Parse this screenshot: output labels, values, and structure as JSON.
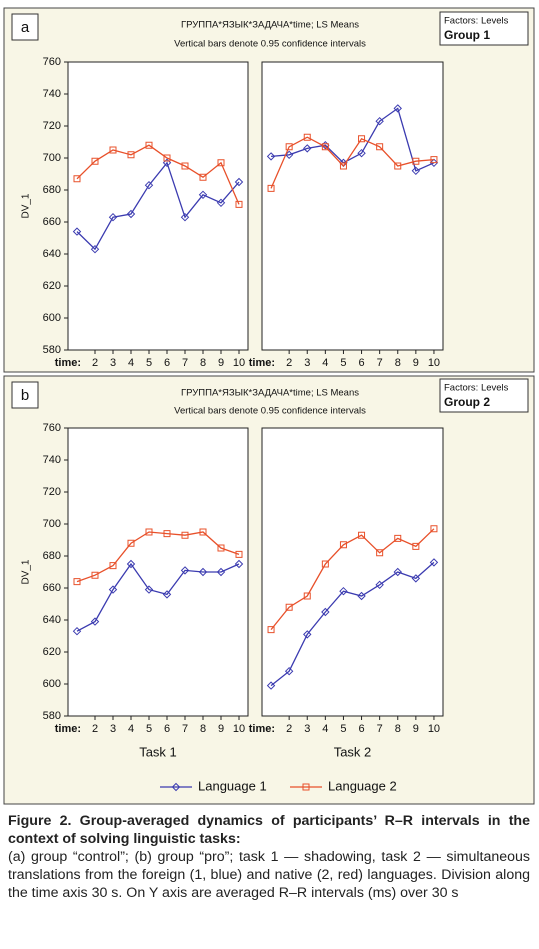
{
  "panels": [
    {
      "label": "a",
      "title": "ГРУППА*ЯЗЫК*ЗАДАЧА*time; LS Means",
      "subtitle": "Vertical bars denote 0.95 confidence intervals",
      "factors_title": "Factors: Levels",
      "factors_value": "Group 1"
    },
    {
      "label": "b",
      "title": "ГРУППА*ЯЗЫК*ЗАДАЧА*time; LS Means",
      "subtitle": "Vertical bars denote 0.95 confidence intervals",
      "factors_title": "Factors: Levels",
      "factors_value": "Group 2"
    }
  ],
  "chart_data": [
    {
      "type": "line",
      "ylabel": "DV_1",
      "xlabel": "time:",
      "x": [
        1,
        2,
        3,
        4,
        5,
        6,
        7,
        8,
        9,
        10
      ],
      "xlim": [
        0.5,
        10.5
      ],
      "xticks": [
        2,
        3,
        4,
        5,
        6,
        7,
        8,
        9,
        10
      ],
      "ylim": [
        580,
        760
      ],
      "yticks": [
        580,
        600,
        620,
        640,
        660,
        680,
        700,
        720,
        740,
        760
      ],
      "series": [
        {
          "name": "Language 1",
          "color": "#3b3bb0",
          "marker": "diamond",
          "values": [
            654,
            643,
            663,
            665,
            683,
            697,
            663,
            677,
            672,
            685
          ]
        },
        {
          "name": "Language 2",
          "color": "#e8502a",
          "marker": "square",
          "values": [
            687,
            698,
            705,
            702,
            708,
            700,
            695,
            688,
            697,
            671
          ]
        }
      ]
    },
    {
      "type": "line",
      "xlabel": "time:",
      "x": [
        1,
        2,
        3,
        4,
        5,
        6,
        7,
        8,
        9,
        10
      ],
      "xlim": [
        0.5,
        10.5
      ],
      "xticks": [
        2,
        3,
        4,
        5,
        6,
        7,
        8,
        9,
        10
      ],
      "ylim": [
        580,
        760
      ],
      "series": [
        {
          "name": "Language 1",
          "color": "#3b3bb0",
          "marker": "diamond",
          "values": [
            701,
            702,
            706,
            708,
            697,
            703,
            723,
            731,
            692,
            697
          ]
        },
        {
          "name": "Language 2",
          "color": "#e8502a",
          "marker": "square",
          "values": [
            681,
            707,
            713,
            707,
            695,
            712,
            707,
            695,
            698,
            699
          ]
        }
      ]
    },
    {
      "type": "line",
      "ylabel": "DV_1",
      "xlabel": "time:",
      "task": "Task 1",
      "x": [
        1,
        2,
        3,
        4,
        5,
        6,
        7,
        8,
        9,
        10
      ],
      "xlim": [
        0.5,
        10.5
      ],
      "xticks": [
        2,
        3,
        4,
        5,
        6,
        7,
        8,
        9,
        10
      ],
      "ylim": [
        580,
        760
      ],
      "yticks": [
        580,
        600,
        620,
        640,
        660,
        680,
        700,
        720,
        740,
        760
      ],
      "series": [
        {
          "name": "Language 1",
          "color": "#3b3bb0",
          "marker": "diamond",
          "values": [
            633,
            639,
            659,
            675,
            659,
            656,
            671,
            670,
            670,
            675
          ]
        },
        {
          "name": "Language 2",
          "color": "#e8502a",
          "marker": "square",
          "values": [
            664,
            668,
            674,
            688,
            695,
            694,
            693,
            695,
            685,
            681
          ]
        }
      ]
    },
    {
      "type": "line",
      "xlabel": "time:",
      "task": "Task 2",
      "x": [
        1,
        2,
        3,
        4,
        5,
        6,
        7,
        8,
        9,
        10
      ],
      "xlim": [
        0.5,
        10.5
      ],
      "xticks": [
        2,
        3,
        4,
        5,
        6,
        7,
        8,
        9,
        10
      ],
      "ylim": [
        580,
        760
      ],
      "series": [
        {
          "name": "Language 1",
          "color": "#3b3bb0",
          "marker": "diamond",
          "values": [
            599,
            608,
            631,
            645,
            658,
            655,
            662,
            670,
            666,
            676
          ]
        },
        {
          "name": "Language 2",
          "color": "#e8502a",
          "marker": "square",
          "values": [
            634,
            648,
            655,
            675,
            687,
            693,
            682,
            691,
            686,
            697
          ]
        }
      ]
    }
  ],
  "caption": {
    "title": "Figure 2. Group-averaged dynamics of participants’ R–R intervals in the context of solving linguistic tasks:",
    "text": "(a) group “control”; (b) group “pro”; task 1 — shadowing, task 2 — simultaneous translations from the foreign (1, blue) and native (2, red) languages. Division along the time axis 30 s. On Y axis are averaged R–R intervals (ms) over 30 s"
  }
}
